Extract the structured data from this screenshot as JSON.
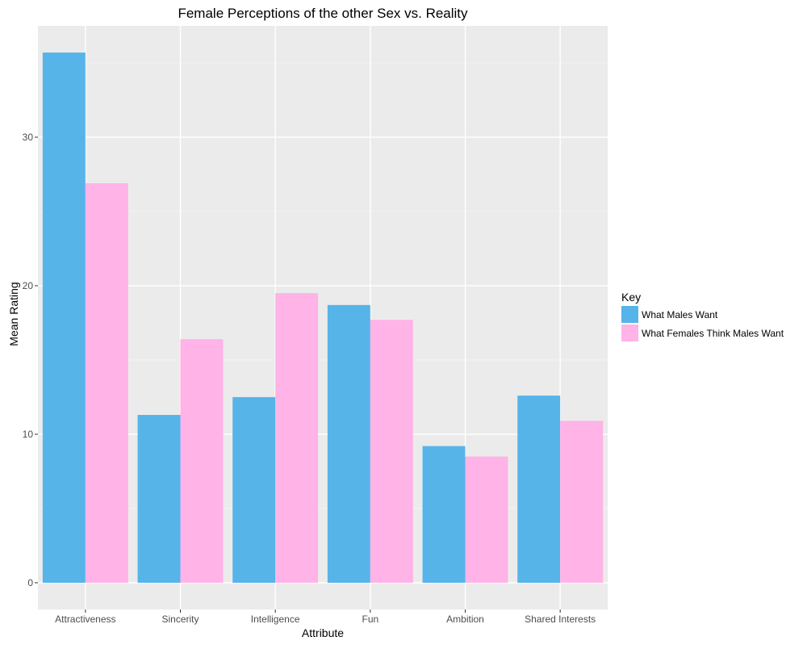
{
  "chart_data": {
    "type": "bar",
    "title": "Female Perceptions of the other Sex vs. Reality",
    "xlabel": "Attribute",
    "ylabel": "Mean Rating",
    "categories": [
      "Attractiveness",
      "Sincerity",
      "Intelligence",
      "Fun",
      "Ambition",
      "Shared Interests"
    ],
    "series": [
      {
        "name": "What Males Want",
        "color": "#56b4e9",
        "values": [
          35.7,
          11.3,
          12.5,
          18.7,
          9.2,
          12.6
        ]
      },
      {
        "name": "What Females Think Males Want",
        "color": "#ffb3e6",
        "values": [
          26.9,
          16.4,
          19.5,
          17.7,
          8.5,
          10.9
        ]
      }
    ],
    "ylim": [
      -1.8,
      37.5
    ],
    "yticks": [
      0,
      10,
      20,
      30
    ],
    "grid": true,
    "background": "#ebebeb",
    "legend": {
      "title": "Key",
      "position": "right"
    }
  }
}
